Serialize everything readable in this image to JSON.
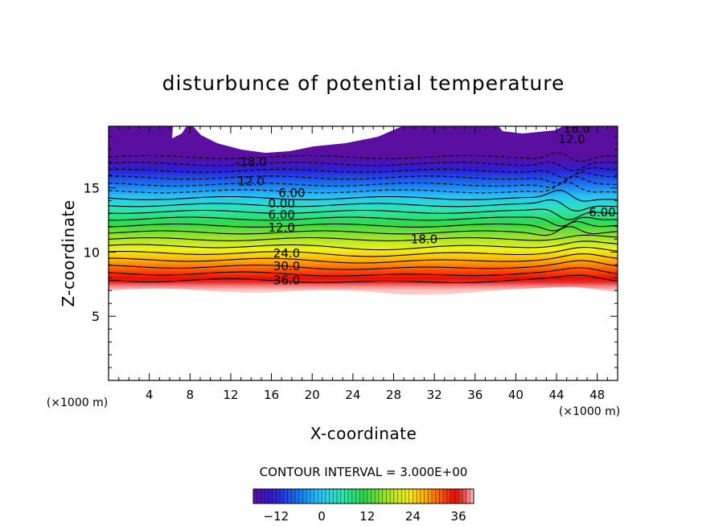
{
  "chart_data": {
    "type": "contour",
    "title": "disturbunce of potential temperature",
    "xlabel": "X-coordinate",
    "ylabel": "Z-coordinate",
    "x_unit_left": "(×1000 m)",
    "x_unit_right": "(×1000 m)",
    "xlim": [
      0,
      50
    ],
    "ylim": [
      0,
      19.8
    ],
    "x_ticks": [
      4,
      8,
      12,
      16,
      20,
      24,
      28,
      32,
      36,
      40,
      44,
      48
    ],
    "y_ticks": [
      5,
      10,
      15
    ],
    "contour_interval_text": "CONTOUR INTERVAL = 3.000E+00",
    "contour_levels": [
      -18,
      -15,
      -12,
      -9,
      -6,
      -3,
      0,
      3,
      6,
      9,
      12,
      15,
      18,
      21,
      24,
      27,
      30,
      33,
      36
    ],
    "contour_labels": [
      {
        "text": "-18.0",
        "x": 14,
        "z": 17.0
      },
      {
        "text": "12.0",
        "x": 14,
        "z": 15.5
      },
      {
        "text": "6.00",
        "x": 18,
        "z": 14.6
      },
      {
        "text": "0.00",
        "x": 17,
        "z": 13.8
      },
      {
        "text": "6.00",
        "x": 17,
        "z": 12.9
      },
      {
        "text": "12.0",
        "x": 17,
        "z": 11.9
      },
      {
        "text": "18.0",
        "x": 31,
        "z": 11.0
      },
      {
        "text": "24.0",
        "x": 17.5,
        "z": 9.9
      },
      {
        "text": "30.0",
        "x": 17.5,
        "z": 8.9
      },
      {
        "text": "36.0",
        "x": 17.5,
        "z": 7.8
      },
      {
        "text": "18.0",
        "x": 46,
        "z": 19.6
      },
      {
        "text": "12.0",
        "x": 45.5,
        "z": 18.8
      },
      {
        "text": "6.00",
        "x": 48.5,
        "z": 13.1
      }
    ],
    "colorbar": {
      "min": -18,
      "max": 40,
      "tick_values": [
        -12,
        0,
        12,
        24,
        36
      ],
      "tick_labels": [
        "−12",
        "0",
        "12",
        "24",
        "36"
      ]
    },
    "undefined_region_below_z": 7.0
  }
}
